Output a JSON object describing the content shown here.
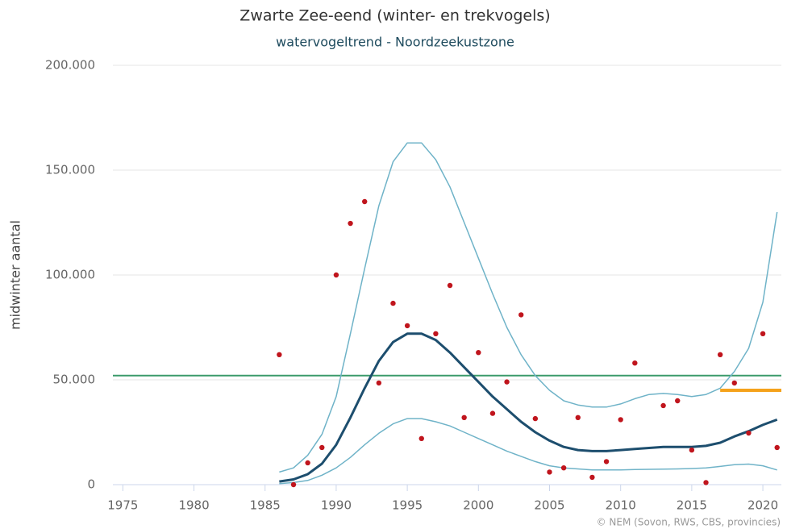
{
  "chart_data": {
    "type": "line",
    "title": "Zwarte Zee-eend (winter- en trekvogels)",
    "subtitle": "watervogeltrend - Noordzeekustzone",
    "y_label": "midwinter aantal",
    "credit": "© NEM (Sovon, RWS, CBS, provincies)",
    "xlim": [
      1974.3,
      2021.3
    ],
    "xticks": [
      1975,
      1980,
      1985,
      1990,
      1995,
      2000,
      2005,
      2010,
      2015,
      2020
    ],
    "ylim": [
      0,
      200000
    ],
    "yticks": [
      0,
      {
        "value": 50000,
        "label": "50.000"
      },
      {
        "value": 100000,
        "label": "100.000"
      },
      {
        "value": 150000,
        "label": "150.000"
      },
      {
        "value": 200000,
        "label": "200.000"
      }
    ],
    "grid": true,
    "x": [
      1986,
      1987,
      1988,
      1989,
      1990,
      1991,
      1992,
      1993,
      1994,
      1995,
      1996,
      1997,
      1998,
      1999,
      2000,
      2001,
      2002,
      2003,
      2004,
      2005,
      2006,
      2007,
      2008,
      2009,
      2010,
      2011,
      2012,
      2013,
      2014,
      2015,
      2016,
      2017,
      2018,
      2019,
      2020,
      2021
    ],
    "series": [
      {
        "color": "#6fb3c8",
        "width": 1.5,
        "values": [
          6000,
          8000,
          14000,
          24000,
          42000,
          72000,
          103000,
          133000,
          154000,
          163000,
          163000,
          155000,
          142000,
          125000,
          108000,
          91000,
          75000,
          62000,
          52000,
          45000,
          40000,
          38000,
          37000,
          37000,
          38500,
          41000,
          43000,
          43500,
          43000,
          42000,
          43000,
          46000,
          54000,
          65000,
          87000,
          130000
        ]
      },
      {
        "color": "#1d4e6e",
        "width": 3,
        "values": [
          1500,
          2500,
          5000,
          10000,
          19000,
          32000,
          46000,
          59000,
          68000,
          72000,
          72000,
          69000,
          63000,
          56000,
          49000,
          42000,
          36000,
          30000,
          25000,
          21000,
          18000,
          16500,
          16000,
          16000,
          16500,
          17000,
          17500,
          18000,
          18000,
          18000,
          18500,
          20000,
          23000,
          25500,
          28500,
          31000
        ]
      },
      {
        "color": "#6fb3c8",
        "width": 1.5,
        "values": [
          500,
          1000,
          2000,
          4500,
          8000,
          13000,
          19000,
          24500,
          29000,
          31500,
          31500,
          30000,
          28000,
          25000,
          22000,
          19000,
          16000,
          13500,
          11000,
          9000,
          8000,
          7500,
          7000,
          7000,
          7000,
          7200,
          7300,
          7400,
          7500,
          7700,
          8000,
          8700,
          9500,
          9800,
          9000,
          7000
        ]
      }
    ],
    "points": {
      "type": "scatter",
      "color": "#c0151d",
      "x": [
        1986,
        1987,
        1988,
        1989,
        1990,
        1991,
        1992,
        1993,
        1994,
        1995,
        1996,
        1997,
        1998,
        1999,
        2000,
        2001,
        2002,
        2003,
        2004,
        2005,
        2006,
        2007,
        2008,
        2009,
        2010,
        2011,
        2013,
        2014,
        2015,
        2016,
        2017,
        2018,
        2019,
        2020,
        2021
      ],
      "values": [
        62000,
        0,
        10400,
        17700,
        100000,
        124600,
        135000,
        48500,
        86500,
        75800,
        22000,
        72000,
        95000,
        32000,
        63000,
        34000,
        49000,
        81000,
        31500,
        6000,
        8000,
        32000,
        3500,
        11000,
        31000,
        58000,
        37700,
        40000,
        16500,
        1000,
        62000,
        48500,
        24600,
        72000,
        17700
      ]
    },
    "reference_lines": [
      {
        "value": 52000,
        "x": [
          1974.3,
          2021.3
        ],
        "color": "#3a9a6a"
      },
      {
        "value": 45000,
        "x": [
          2017,
          2021.3
        ],
        "color": "#f5a21b"
      }
    ]
  }
}
